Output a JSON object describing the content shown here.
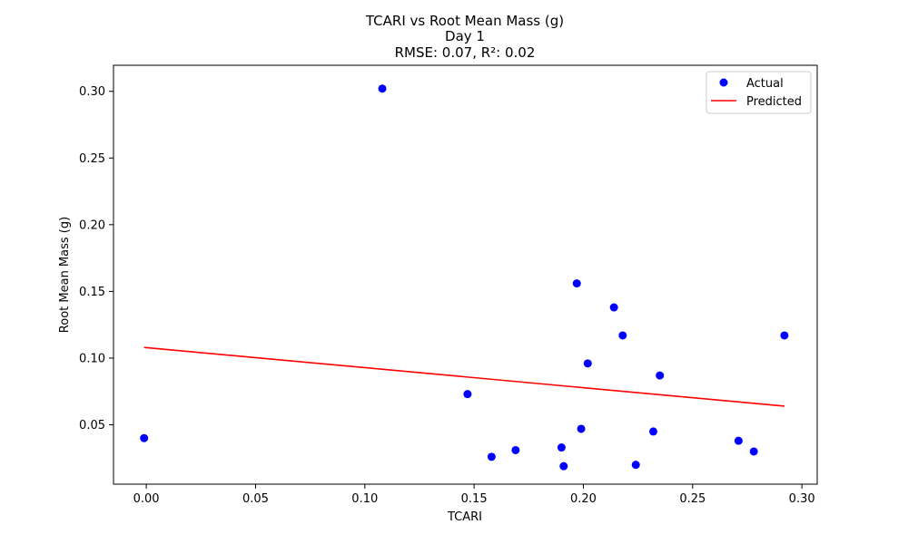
{
  "chart_data": {
    "type": "scatter",
    "title_lines": [
      "TCARI vs Root Mean Mass (g)",
      "Day 1",
      "RMSE: 0.07, R²: 0.02"
    ],
    "xlabel": "TCARI",
    "ylabel": "Root Mean Mass (g)",
    "xlim": [
      -0.015,
      0.307
    ],
    "ylim": [
      0.0055,
      0.3195
    ],
    "xticks": [
      0.0,
      0.05,
      0.1,
      0.15,
      0.2,
      0.25,
      0.3
    ],
    "xtick_labels": [
      "0.00",
      "0.05",
      "0.10",
      "0.15",
      "0.20",
      "0.25",
      "0.30"
    ],
    "yticks": [
      0.05,
      0.1,
      0.15,
      0.2,
      0.25,
      0.3
    ],
    "ytick_labels": [
      "0.05",
      "0.10",
      "0.15",
      "0.20",
      "0.25",
      "0.30"
    ],
    "grid": false,
    "legend_position": "top-right",
    "series": [
      {
        "name": "Actual",
        "kind": "scatter",
        "color": "#0000ff",
        "points": [
          {
            "x": -0.001,
            "y": 0.04
          },
          {
            "x": 0.108,
            "y": 0.302
          },
          {
            "x": 0.147,
            "y": 0.073
          },
          {
            "x": 0.158,
            "y": 0.026
          },
          {
            "x": 0.169,
            "y": 0.031
          },
          {
            "x": 0.19,
            "y": 0.033
          },
          {
            "x": 0.191,
            "y": 0.019
          },
          {
            "x": 0.197,
            "y": 0.156
          },
          {
            "x": 0.199,
            "y": 0.047
          },
          {
            "x": 0.202,
            "y": 0.096
          },
          {
            "x": 0.214,
            "y": 0.138
          },
          {
            "x": 0.218,
            "y": 0.117
          },
          {
            "x": 0.224,
            "y": 0.02
          },
          {
            "x": 0.232,
            "y": 0.045
          },
          {
            "x": 0.235,
            "y": 0.087
          },
          {
            "x": 0.271,
            "y": 0.038
          },
          {
            "x": 0.278,
            "y": 0.03
          },
          {
            "x": 0.292,
            "y": 0.117
          }
        ]
      },
      {
        "name": "Predicted",
        "kind": "line",
        "color": "#ff0000",
        "points": [
          {
            "x": -0.001,
            "y": 0.108
          },
          {
            "x": 0.292,
            "y": 0.064
          }
        ]
      }
    ]
  }
}
